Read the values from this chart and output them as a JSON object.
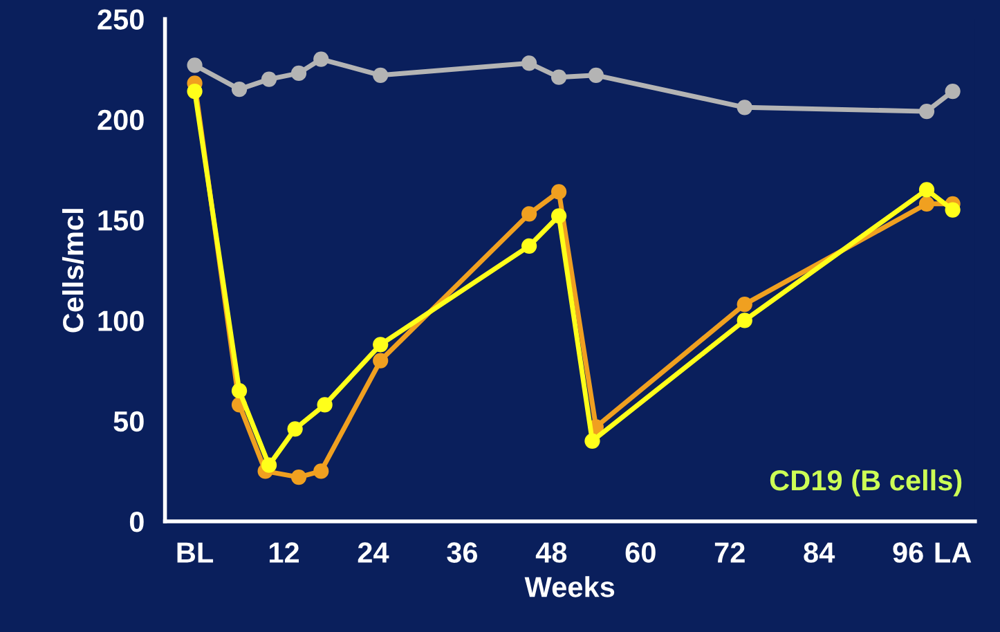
{
  "chart_data": {
    "type": "line",
    "xlabel": "Weeks",
    "ylabel": "Cells/mcl",
    "xlim": [
      -4,
      105
    ],
    "ylim": [
      0,
      250
    ],
    "xticks": [
      {
        "value": 0,
        "label": "BL"
      },
      12,
      24,
      36,
      48,
      60,
      72,
      84,
      96,
      {
        "value": 102,
        "label": "LA"
      }
    ],
    "yticks": [
      0,
      50,
      100,
      150,
      200,
      250
    ],
    "marker": "circle",
    "grid": false,
    "annotations": [
      "CD19 (B cells)"
    ],
    "series": [
      {
        "color": "#b4b4b4",
        "x": [
          0,
          6,
          10,
          14,
          17,
          25,
          45,
          49,
          54,
          74,
          98.5,
          102
        ],
        "values": [
          227,
          215,
          220,
          223,
          230,
          222,
          228,
          221,
          222,
          206,
          204,
          214
        ]
      },
      {
        "color": "#f0a020",
        "x": [
          0,
          6,
          9.5,
          14,
          17,
          25,
          45,
          49,
          54,
          74,
          98.5,
          102
        ],
        "values": [
          218,
          58,
          25,
          22,
          25,
          80,
          153,
          164,
          47,
          108,
          158,
          158
        ]
      },
      {
        "color": "#ffff1a",
        "x": [
          0,
          6,
          10,
          13.5,
          17.5,
          25,
          45,
          49,
          53.5,
          74,
          98.5,
          102
        ],
        "values": [
          214,
          65,
          28,
          46,
          58,
          88,
          137,
          152,
          40,
          100,
          165,
          155
        ]
      }
    ]
  }
}
